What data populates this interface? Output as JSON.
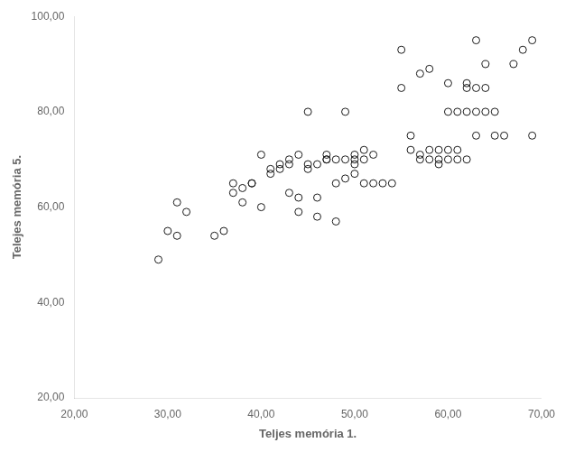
{
  "chart_data": {
    "type": "scatter",
    "x": [
      29,
      30,
      31,
      31,
      32,
      35,
      36,
      37,
      37,
      38,
      38,
      39,
      39,
      40,
      40,
      41,
      41,
      42,
      42,
      43,
      43,
      43,
      44,
      44,
      44,
      45,
      45,
      45,
      46,
      46,
      46,
      47,
      47,
      47,
      48,
      48,
      48,
      49,
      49,
      49,
      50,
      50,
      50,
      50,
      51,
      51,
      51,
      52,
      52,
      53,
      54,
      55,
      55,
      56,
      56,
      57,
      57,
      57,
      58,
      58,
      58,
      59,
      59,
      59,
      60,
      60,
      60,
      60,
      61,
      61,
      61,
      62,
      62,
      62,
      62,
      63,
      63,
      63,
      63,
      64,
      64,
      64,
      65,
      65,
      66,
      67,
      68,
      69,
      69
    ],
    "values": [
      49,
      55,
      54,
      61,
      59,
      54,
      55,
      63,
      65,
      64,
      61,
      65,
      65,
      60,
      71,
      67,
      68,
      68,
      69,
      63,
      69,
      70,
      59,
      62,
      71,
      68,
      69,
      80,
      58,
      62,
      69,
      70,
      70,
      71,
      57,
      65,
      70,
      66,
      70,
      80,
      67,
      69,
      70,
      71,
      65,
      70,
      72,
      65,
      71,
      65,
      65,
      93,
      85,
      72,
      75,
      70,
      71,
      88,
      70,
      72,
      89,
      69,
      70,
      72,
      80,
      86,
      72,
      70,
      70,
      72,
      80,
      80,
      85,
      86,
      70,
      75,
      80,
      85,
      95,
      80,
      85,
      90,
      80,
      75,
      75,
      90,
      93,
      95,
      75
    ],
    "xlabel": "Teljes memória 1.",
    "ylabel": "Telejes memória 5.",
    "xlim": [
      20,
      70
    ],
    "ylim": [
      20,
      100
    ],
    "xticks": [
      {
        "value": 20,
        "label": "20,00"
      },
      {
        "value": 30,
        "label": "30,00"
      },
      {
        "value": 40,
        "label": "40,00"
      },
      {
        "value": 50,
        "label": "50,00"
      },
      {
        "value": 60,
        "label": "60,00"
      },
      {
        "value": 70,
        "label": "70,00"
      }
    ],
    "yticks": [
      {
        "value": 20,
        "label": "20,00"
      },
      {
        "value": 40,
        "label": "40,00"
      },
      {
        "value": 60,
        "label": "60,00"
      },
      {
        "value": 80,
        "label": "80,00"
      },
      {
        "value": 100,
        "label": "100,00"
      }
    ],
    "color": "#1a1a1a",
    "grid": false
  }
}
